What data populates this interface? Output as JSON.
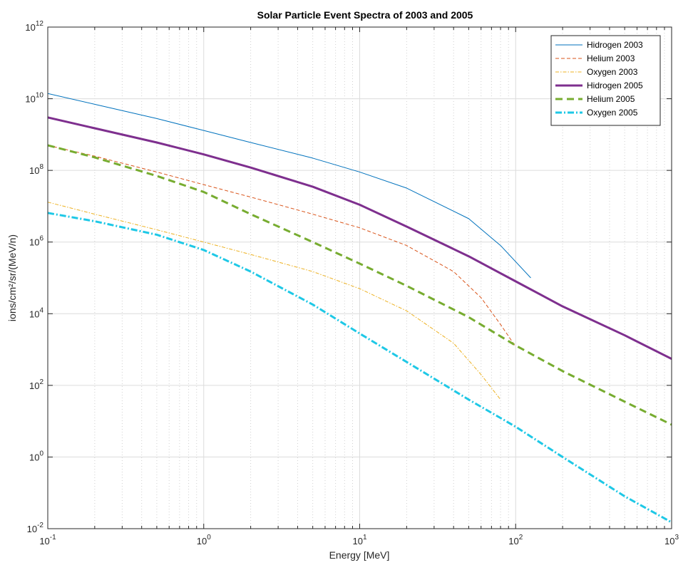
{
  "chart_data": {
    "type": "line",
    "title": "Solar Particle Event Spectra of 2003 and 2005",
    "xlabel": "Energy [MeV]",
    "ylabel": "ions/cm²/sr/(MeV/n)",
    "xscale": "log",
    "yscale": "log",
    "xlim": [
      0.1,
      1000
    ],
    "ylim": [
      0.01,
      1000000000000.0
    ],
    "grid": true,
    "legend_location": "top-right",
    "x_ticks": [
      {
        "base": "10",
        "exp": "-1",
        "value": 0.1
      },
      {
        "base": "10",
        "exp": "0",
        "value": 1
      },
      {
        "base": "10",
        "exp": "1",
        "value": 10
      },
      {
        "base": "10",
        "exp": "2",
        "value": 100
      },
      {
        "base": "10",
        "exp": "3",
        "value": 1000
      }
    ],
    "y_ticks": [
      {
        "base": "10",
        "exp": "-2",
        "value": 0.01
      },
      {
        "base": "10",
        "exp": "0",
        "value": 1
      },
      {
        "base": "10",
        "exp": "2",
        "value": 100
      },
      {
        "base": "10",
        "exp": "4",
        "value": 10000
      },
      {
        "base": "10",
        "exp": "6",
        "value": 1000000
      },
      {
        "base": "10",
        "exp": "8",
        "value": 100000000
      },
      {
        "base": "10",
        "exp": "10",
        "value": 10000000000
      },
      {
        "base": "10",
        "exp": "12",
        "value": 1000000000000
      }
    ],
    "series": [
      {
        "name": "Hidrogen 2003",
        "color": "#0072BD",
        "line_style": "solid",
        "line_width": "thin",
        "x": [
          0.1,
          0.2,
          0.5,
          1,
          2,
          5,
          10,
          20,
          50,
          80,
          125
        ],
        "y": [
          14000000000.0,
          7000000000.0,
          2800000000.0,
          1300000000.0,
          600000000.0,
          220000000.0,
          90000000.0,
          32000000.0,
          4500000.0,
          800000.0,
          100000.0
        ]
      },
      {
        "name": "Helium 2003",
        "color": "#D95319",
        "line_style": "dashed",
        "line_width": "thin",
        "x": [
          0.1,
          0.2,
          0.5,
          1,
          2,
          5,
          10,
          20,
          40,
          60,
          80,
          100
        ],
        "y": [
          500000000.0,
          250000000.0,
          90000000.0,
          40000000.0,
          18000000.0,
          6000000.0,
          2500000.0,
          800000.0,
          150000.0,
          28000.0,
          5000.0,
          1200.0
        ]
      },
      {
        "name": "Oxygen 2003",
        "color": "#EDB120",
        "line_style": "dashdot",
        "line_width": "thin",
        "x": [
          0.1,
          0.2,
          0.5,
          1,
          2,
          5,
          10,
          20,
          40,
          60,
          80
        ],
        "y": [
          13000000.0,
          6000000.0,
          2200000.0,
          1000000.0,
          450000.0,
          150000.0,
          50000.0,
          12000.0,
          1500.0,
          200,
          40
        ]
      },
      {
        "name": "Hidrogen 2005",
        "color": "#7E2F8E",
        "line_style": "solid",
        "line_width": "thick",
        "x": [
          0.1,
          0.2,
          0.5,
          1,
          2,
          5,
          10,
          20,
          50,
          100,
          200,
          500,
          1000
        ],
        "y": [
          3000000000.0,
          1500000000.0,
          600000000.0,
          280000000.0,
          120000000.0,
          35000000.0,
          11000000.0,
          2700000.0,
          400000.0,
          80000.0,
          16000.0,
          2500.0,
          550
        ]
      },
      {
        "name": "Helium 2005",
        "color": "#77AC30",
        "line_style": "dashed",
        "line_width": "thick",
        "x": [
          0.1,
          0.2,
          0.5,
          1,
          2,
          5,
          10,
          20,
          50,
          100,
          200,
          500,
          1000
        ],
        "y": [
          500000000.0,
          230000000.0,
          70000000.0,
          25000000.0,
          6000000.0,
          1000000.0,
          250000.0,
          60000.0,
          8000.0,
          1300.0,
          250,
          35,
          8
        ]
      },
      {
        "name": "Oxygen 2005",
        "color": "#1EC8E6",
        "line_style": "dashdot",
        "line_width": "thick",
        "x": [
          0.1,
          0.2,
          0.5,
          1,
          2,
          5,
          10,
          20,
          50,
          100,
          200,
          500,
          1000
        ],
        "y": [
          6500000.0,
          3800000.0,
          1600000.0,
          600000.0,
          150000.0,
          18000.0,
          2800.0,
          450,
          40,
          7,
          1,
          0.08,
          0.015
        ]
      }
    ]
  }
}
